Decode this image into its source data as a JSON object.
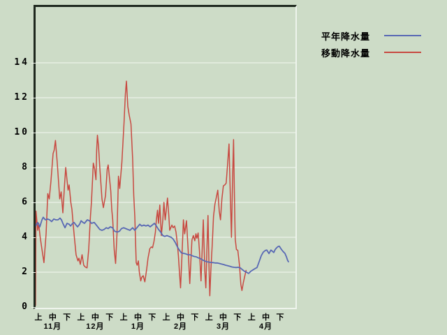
{
  "window": {
    "title": "precipitation-chart"
  },
  "colors": {
    "background": "#cddcc7",
    "plot_background": "#cddcc7",
    "gridline": "#f4f8f1",
    "frame_dark": "#1e281e",
    "frame_light": "#eef4ec",
    "tick": "#eef4ec",
    "text": "#000000",
    "normal_series": "#5868b4",
    "moving_series": "#c84840"
  },
  "legend": {
    "items": [
      {
        "id": "normal-precipitation",
        "label": "平年降水量",
        "color": "#5868b4"
      },
      {
        "id": "moving-precipitation",
        "label": "移動降水量",
        "color": "#c84840"
      }
    ]
  },
  "chart_data": {
    "type": "line",
    "title": "",
    "xlabel": "",
    "ylabel": "",
    "ylim": [
      0,
      17.2
    ],
    "y_ticks": [
      0,
      2,
      4,
      6,
      8,
      10,
      12,
      14
    ],
    "grid": "horizontal-white",
    "legend_position": "top-right-outside",
    "x_axis": {
      "unit": "period-index (0 = 11月上, 1 step = one 旬)",
      "period_labels": [
        "上",
        "中",
        "下",
        "上",
        "中",
        "下",
        "上",
        "中",
        "下",
        "上",
        "中",
        "下",
        "上",
        "中",
        "下",
        "上",
        "中",
        "下"
      ],
      "period_positions": [
        0,
        1,
        2,
        3,
        4,
        5,
        6,
        7,
        8,
        9,
        10,
        11,
        12,
        13,
        14,
        15,
        16,
        17
      ],
      "months": [
        {
          "label": "11月",
          "center": 1
        },
        {
          "label": "12月",
          "center": 4
        },
        {
          "label": "1月",
          "center": 7
        },
        {
          "label": "2月",
          "center": 10
        },
        {
          "label": "3月",
          "center": 13
        },
        {
          "label": "4月",
          "center": 16
        }
      ]
    },
    "series": [
      {
        "id": "moving-precipitation",
        "name": "移動降水量",
        "color": "#c84840",
        "width": 1.5,
        "points": [
          [
            -0.2,
            0.1
          ],
          [
            -0.17,
            5.5
          ],
          [
            -0.05,
            4.4
          ],
          [
            0.02,
            4.8
          ],
          [
            0.12,
            4.05
          ],
          [
            0.25,
            3.3
          ],
          [
            0.39,
            2.55
          ],
          [
            0.54,
            4.2
          ],
          [
            0.66,
            6.5
          ],
          [
            0.76,
            6.2
          ],
          [
            0.88,
            7.2
          ],
          [
            1.03,
            8.8
          ],
          [
            1.11,
            9.0
          ],
          [
            1.2,
            9.55
          ],
          [
            1.33,
            8.2
          ],
          [
            1.5,
            6.2
          ],
          [
            1.6,
            6.6
          ],
          [
            1.72,
            5.4
          ],
          [
            1.84,
            7.0
          ],
          [
            1.92,
            8.0
          ],
          [
            2.01,
            7.3
          ],
          [
            2.09,
            6.7
          ],
          [
            2.16,
            7.0
          ],
          [
            2.28,
            6.0
          ],
          [
            2.36,
            5.6
          ],
          [
            2.46,
            4.6
          ],
          [
            2.53,
            4.0
          ],
          [
            2.65,
            3.0
          ],
          [
            2.78,
            2.65
          ],
          [
            2.85,
            2.8
          ],
          [
            2.95,
            2.45
          ],
          [
            3.07,
            3.0
          ],
          [
            3.19,
            2.4
          ],
          [
            3.29,
            2.3
          ],
          [
            3.42,
            2.25
          ],
          [
            3.54,
            3.3
          ],
          [
            3.66,
            5.2
          ],
          [
            3.73,
            6.0
          ],
          [
            3.81,
            7.3
          ],
          [
            3.86,
            8.25
          ],
          [
            3.96,
            7.9
          ],
          [
            4.05,
            7.3
          ],
          [
            4.1,
            9.0
          ],
          [
            4.15,
            9.85
          ],
          [
            4.23,
            9.2
          ],
          [
            4.32,
            8.0
          ],
          [
            4.47,
            6.2
          ],
          [
            4.57,
            5.7
          ],
          [
            4.72,
            6.4
          ],
          [
            4.84,
            7.9
          ],
          [
            4.91,
            8.15
          ],
          [
            5.09,
            6.65
          ],
          [
            5.16,
            5.6
          ],
          [
            5.23,
            5.0
          ],
          [
            5.33,
            3.3
          ],
          [
            5.43,
            2.5
          ],
          [
            5.53,
            4.2
          ],
          [
            5.63,
            7.5
          ],
          [
            5.72,
            6.8
          ],
          [
            5.87,
            8.3
          ],
          [
            6.02,
            10.5
          ],
          [
            6.12,
            12.2
          ],
          [
            6.19,
            12.95
          ],
          [
            6.29,
            11.5
          ],
          [
            6.39,
            11.0
          ],
          [
            6.51,
            10.5
          ],
          [
            6.63,
            8.5
          ],
          [
            6.71,
            6.4
          ],
          [
            6.78,
            5.2
          ],
          [
            6.88,
            2.55
          ],
          [
            6.95,
            2.4
          ],
          [
            7.03,
            2.65
          ],
          [
            7.1,
            2.0
          ],
          [
            7.2,
            1.5
          ],
          [
            7.27,
            1.7
          ],
          [
            7.37,
            1.8
          ],
          [
            7.49,
            1.45
          ],
          [
            7.62,
            2.2
          ],
          [
            7.71,
            2.8
          ],
          [
            7.84,
            3.35
          ],
          [
            7.94,
            3.45
          ],
          [
            8.03,
            3.4
          ],
          [
            8.13,
            3.75
          ],
          [
            8.23,
            4.3
          ],
          [
            8.3,
            5.0
          ],
          [
            8.38,
            5.55
          ],
          [
            8.45,
            4.8
          ],
          [
            8.54,
            5.85
          ],
          [
            8.65,
            4.1
          ],
          [
            8.75,
            5.0
          ],
          [
            8.83,
            6.0
          ],
          [
            8.92,
            5.0
          ],
          [
            8.99,
            5.5
          ],
          [
            9.08,
            6.25
          ],
          [
            9.17,
            5.3
          ],
          [
            9.24,
            4.4
          ],
          [
            9.39,
            4.7
          ],
          [
            9.48,
            4.55
          ],
          [
            9.58,
            4.65
          ],
          [
            9.68,
            4.3
          ],
          [
            9.78,
            3.6
          ],
          [
            9.85,
            2.95
          ],
          [
            9.93,
            1.9
          ],
          [
            10.0,
            1.1
          ],
          [
            10.1,
            2.9
          ],
          [
            10.2,
            5.0
          ],
          [
            10.29,
            4.2
          ],
          [
            10.42,
            4.95
          ],
          [
            10.54,
            3.2
          ],
          [
            10.65,
            1.35
          ],
          [
            10.8,
            3.85
          ],
          [
            10.9,
            4.1
          ],
          [
            11.0,
            3.8
          ],
          [
            11.08,
            4.2
          ],
          [
            11.15,
            3.95
          ],
          [
            11.24,
            4.25
          ],
          [
            11.33,
            3.2
          ],
          [
            11.44,
            1.5
          ],
          [
            11.52,
            3.2
          ],
          [
            11.6,
            5.0
          ],
          [
            11.71,
            2.0
          ],
          [
            11.78,
            1.1
          ],
          [
            11.86,
            3.5
          ],
          [
            11.93,
            5.25
          ],
          [
            12.0,
            2.4
          ],
          [
            12.06,
            0.65
          ],
          [
            12.14,
            2.2
          ],
          [
            12.23,
            3.6
          ],
          [
            12.32,
            5.2
          ],
          [
            12.42,
            5.9
          ],
          [
            12.52,
            6.3
          ],
          [
            12.62,
            6.7
          ],
          [
            12.72,
            5.5
          ],
          [
            12.81,
            5.0
          ],
          [
            12.91,
            6.2
          ],
          [
            13.01,
            6.95
          ],
          [
            13.11,
            7.0
          ],
          [
            13.21,
            7.1
          ],
          [
            13.31,
            8.2
          ],
          [
            13.41,
            9.35
          ],
          [
            13.5,
            6.5
          ],
          [
            13.58,
            4.0
          ],
          [
            13.65,
            7.0
          ],
          [
            13.73,
            9.6
          ],
          [
            13.8,
            6.0
          ],
          [
            13.85,
            3.9
          ],
          [
            13.93,
            3.3
          ],
          [
            14.03,
            3.25
          ],
          [
            14.15,
            2.35
          ],
          [
            14.24,
            1.3
          ],
          [
            14.32,
            0.95
          ],
          [
            14.42,
            1.4
          ],
          [
            14.51,
            1.75
          ],
          [
            14.61,
            2.1
          ]
        ]
      },
      {
        "id": "normal-precipitation",
        "name": "平年降水量",
        "color": "#5868b4",
        "width": 1.8,
        "points": [
          [
            -0.2,
            4.65
          ],
          [
            -0.05,
            4.85
          ],
          [
            0.1,
            4.6
          ],
          [
            0.25,
            5.0
          ],
          [
            0.34,
            5.15
          ],
          [
            0.49,
            5.0
          ],
          [
            0.64,
            5.05
          ],
          [
            0.79,
            5.0
          ],
          [
            0.93,
            4.9
          ],
          [
            1.08,
            5.05
          ],
          [
            1.23,
            5.0
          ],
          [
            1.38,
            5.0
          ],
          [
            1.52,
            5.1
          ],
          [
            1.62,
            5.0
          ],
          [
            1.72,
            4.8
          ],
          [
            1.87,
            4.55
          ],
          [
            2.01,
            4.8
          ],
          [
            2.16,
            4.75
          ],
          [
            2.26,
            4.65
          ],
          [
            2.41,
            4.8
          ],
          [
            2.51,
            4.85
          ],
          [
            2.65,
            4.7
          ],
          [
            2.75,
            4.6
          ],
          [
            2.9,
            4.75
          ],
          [
            3.0,
            4.95
          ],
          [
            3.14,
            4.85
          ],
          [
            3.24,
            4.8
          ],
          [
            3.44,
            5.0
          ],
          [
            3.59,
            4.95
          ],
          [
            3.73,
            4.8
          ],
          [
            3.93,
            4.85
          ],
          [
            4.13,
            4.65
          ],
          [
            4.32,
            4.45
          ],
          [
            4.47,
            4.4
          ],
          [
            4.62,
            4.45
          ],
          [
            4.77,
            4.55
          ],
          [
            4.91,
            4.5
          ],
          [
            5.06,
            4.6
          ],
          [
            5.21,
            4.55
          ],
          [
            5.36,
            4.35
          ],
          [
            5.55,
            4.3
          ],
          [
            5.7,
            4.35
          ],
          [
            5.85,
            4.5
          ],
          [
            6.0,
            4.55
          ],
          [
            6.14,
            4.5
          ],
          [
            6.29,
            4.45
          ],
          [
            6.44,
            4.4
          ],
          [
            6.63,
            4.55
          ],
          [
            6.78,
            4.4
          ],
          [
            6.93,
            4.55
          ],
          [
            7.13,
            4.75
          ],
          [
            7.27,
            4.65
          ],
          [
            7.42,
            4.7
          ],
          [
            7.57,
            4.65
          ],
          [
            7.71,
            4.7
          ],
          [
            7.86,
            4.6
          ],
          [
            8.01,
            4.7
          ],
          [
            8.16,
            4.8
          ],
          [
            8.3,
            4.65
          ],
          [
            8.45,
            4.45
          ],
          [
            8.6,
            4.3
          ],
          [
            8.75,
            4.1
          ],
          [
            8.89,
            4.05
          ],
          [
            9.04,
            4.1
          ],
          [
            9.19,
            4.05
          ],
          [
            9.34,
            4.0
          ],
          [
            9.48,
            3.9
          ],
          [
            9.63,
            3.7
          ],
          [
            9.78,
            3.45
          ],
          [
            9.93,
            3.25
          ],
          [
            10.07,
            3.1
          ],
          [
            10.22,
            3.08
          ],
          [
            10.37,
            3.05
          ],
          [
            10.52,
            3.0
          ],
          [
            10.66,
            3.0
          ],
          [
            10.81,
            2.95
          ],
          [
            10.96,
            2.9
          ],
          [
            11.11,
            2.88
          ],
          [
            11.25,
            2.82
          ],
          [
            11.4,
            2.78
          ],
          [
            11.55,
            2.7
          ],
          [
            11.69,
            2.65
          ],
          [
            11.84,
            2.6
          ],
          [
            11.99,
            2.58
          ],
          [
            12.14,
            2.56
          ],
          [
            12.29,
            2.55
          ],
          [
            12.43,
            2.53
          ],
          [
            12.58,
            2.53
          ],
          [
            12.73,
            2.5
          ],
          [
            12.87,
            2.47
          ],
          [
            13.02,
            2.44
          ],
          [
            13.17,
            2.4
          ],
          [
            13.32,
            2.37
          ],
          [
            13.46,
            2.34
          ],
          [
            13.61,
            2.3
          ],
          [
            13.76,
            2.28
          ],
          [
            13.91,
            2.27
          ],
          [
            14.05,
            2.28
          ],
          [
            14.2,
            2.25
          ],
          [
            14.35,
            2.15
          ],
          [
            14.5,
            2.05
          ],
          [
            14.64,
            2.0
          ],
          [
            14.79,
            1.93
          ],
          [
            14.94,
            2.05
          ],
          [
            15.09,
            2.13
          ],
          [
            15.23,
            2.2
          ],
          [
            15.38,
            2.27
          ],
          [
            15.53,
            2.6
          ],
          [
            15.68,
            2.95
          ],
          [
            15.82,
            3.15
          ],
          [
            15.97,
            3.25
          ],
          [
            16.07,
            3.27
          ],
          [
            16.22,
            3.07
          ],
          [
            16.36,
            3.27
          ],
          [
            16.46,
            3.2
          ],
          [
            16.56,
            3.13
          ],
          [
            16.66,
            3.3
          ],
          [
            16.76,
            3.4
          ],
          [
            16.86,
            3.47
          ],
          [
            16.95,
            3.49
          ],
          [
            17.1,
            3.3
          ],
          [
            17.2,
            3.2
          ],
          [
            17.35,
            3.07
          ],
          [
            17.44,
            2.9
          ],
          [
            17.54,
            2.67
          ],
          [
            17.59,
            2.6
          ]
        ]
      }
    ]
  }
}
